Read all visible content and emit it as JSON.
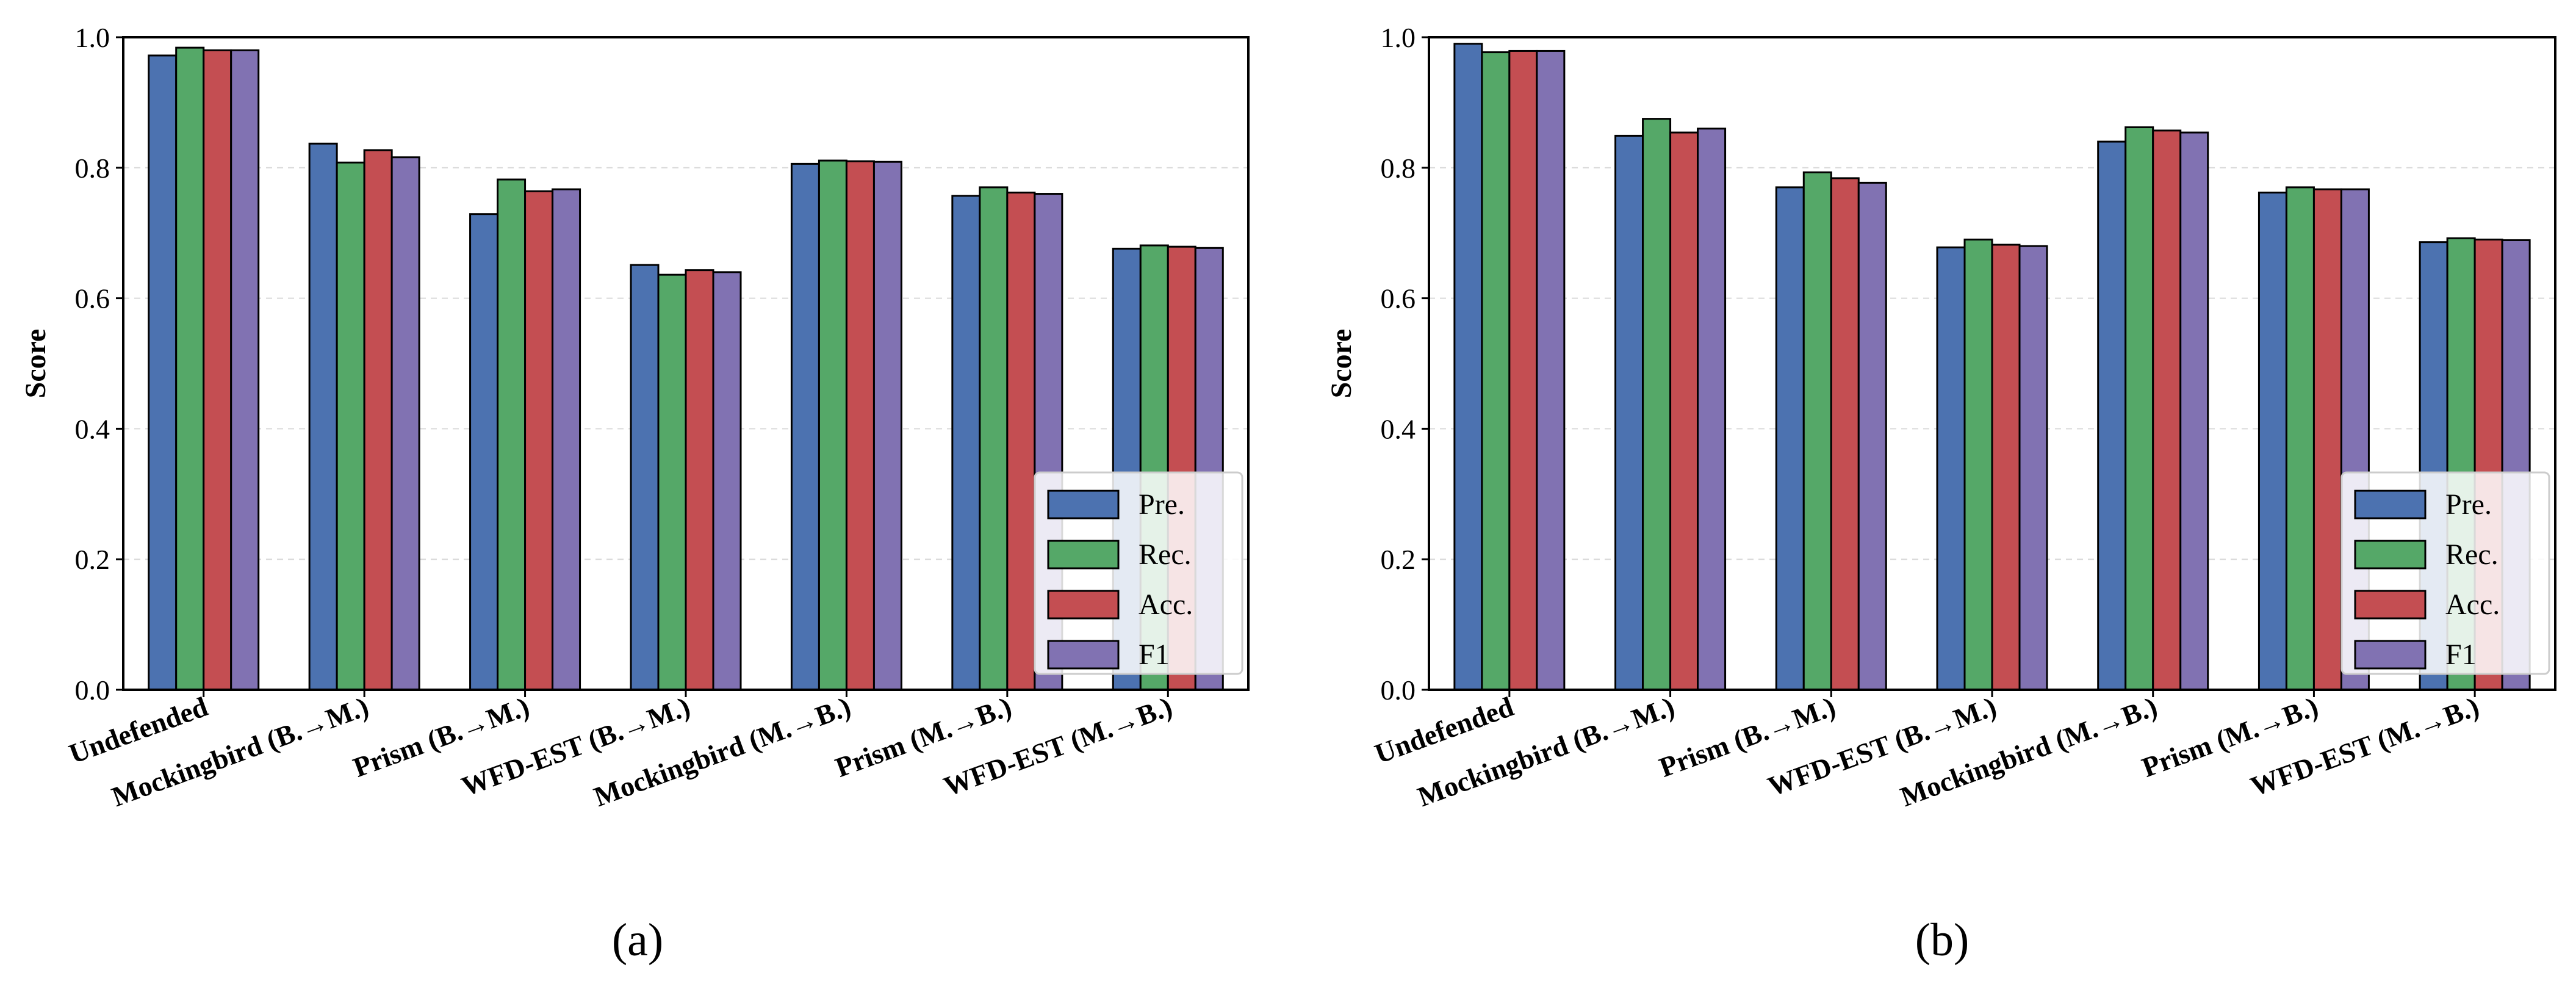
{
  "chart_data": [
    {
      "panel": "(a)",
      "type": "bar",
      "categories": [
        "Undefended",
        "Mockingbird (B.→M.)",
        "Prism (B.→M.)",
        "WFD-EST (B.→M.)",
        "Mockingbird (M.→B.)",
        "Prism (M.→B.)",
        "WFD-EST (M.→B.)"
      ],
      "series": [
        {
          "name": "Pre.",
          "color": "#4c72b0",
          "values": [
            0.972,
            0.837,
            0.729,
            0.651,
            0.806,
            0.757,
            0.676
          ]
        },
        {
          "name": "Rec.",
          "color": "#55a868",
          "values": [
            0.984,
            0.808,
            0.782,
            0.636,
            0.811,
            0.77,
            0.681
          ]
        },
        {
          "name": "Acc.",
          "color": "#c44e52",
          "values": [
            0.98,
            0.827,
            0.764,
            0.643,
            0.81,
            0.762,
            0.679
          ]
        },
        {
          "name": "F1",
          "color": "#8172b2",
          "values": [
            0.98,
            0.816,
            0.767,
            0.64,
            0.809,
            0.76,
            0.677
          ]
        }
      ],
      "ylabel": "Score",
      "ylim": [
        0,
        1.0
      ],
      "yticks": [
        "0.0",
        "0.2",
        "0.4",
        "0.6",
        "0.8",
        "1.0"
      ],
      "legend": "lower-right",
      "grid": true
    },
    {
      "panel": "(b)",
      "type": "bar",
      "categories": [
        "Undefended",
        "Mockingbird (B.→M.)",
        "Prism (B.→M.)",
        "WFD-EST (B.→M.)",
        "Mockingbird (M.→B.)",
        "Prism (M.→B.)",
        "WFD-EST (M.→B.)"
      ],
      "series": [
        {
          "name": "Pre.",
          "color": "#4c72b0",
          "values": [
            0.99,
            0.849,
            0.77,
            0.678,
            0.84,
            0.762,
            0.686
          ]
        },
        {
          "name": "Rec.",
          "color": "#55a868",
          "values": [
            0.977,
            0.875,
            0.793,
            0.69,
            0.862,
            0.77,
            0.692
          ]
        },
        {
          "name": "Acc.",
          "color": "#c44e52",
          "values": [
            0.979,
            0.854,
            0.784,
            0.682,
            0.857,
            0.767,
            0.69
          ]
        },
        {
          "name": "F1",
          "color": "#8172b2",
          "values": [
            0.979,
            0.86,
            0.777,
            0.68,
            0.854,
            0.767,
            0.689
          ]
        }
      ],
      "ylabel": "Score",
      "ylim": [
        0,
        1.0
      ],
      "yticks": [
        "0.0",
        "0.2",
        "0.4",
        "0.6",
        "0.8",
        "1.0"
      ],
      "legend": "lower-right",
      "grid": true
    }
  ]
}
